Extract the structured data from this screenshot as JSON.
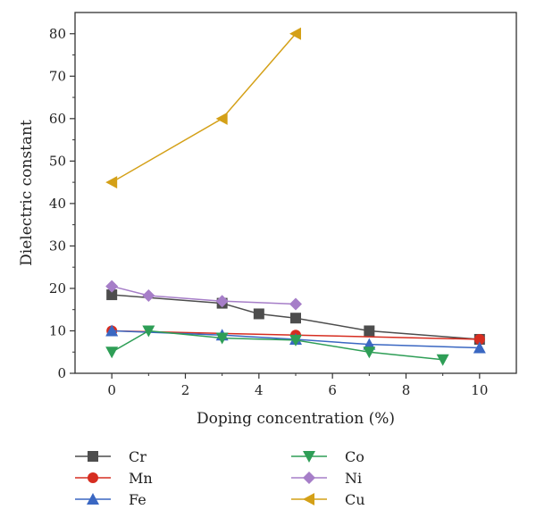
{
  "chart_data": {
    "type": "line",
    "title": "",
    "xlabel": "Doping concentration (%)",
    "ylabel": "Dielectric constant",
    "xlim": [
      -1,
      11
    ],
    "ylim": [
      0,
      85
    ],
    "xticks": [
      0,
      2,
      4,
      6,
      8,
      10
    ],
    "yticks": [
      0,
      10,
      20,
      30,
      40,
      50,
      60,
      70,
      80
    ],
    "grid": false,
    "legend_position": "bottom",
    "series": [
      {
        "name": "Cr",
        "color": "#4d4d4d",
        "marker": "square",
        "x": [
          0,
          3,
          4,
          5,
          7,
          10
        ],
        "y": [
          18.5,
          16.5,
          14,
          13,
          10,
          8
        ]
      },
      {
        "name": "Mn",
        "color": "#d62d20",
        "marker": "circle",
        "x": [
          0,
          5,
          10
        ],
        "y": [
          10,
          9,
          8
        ]
      },
      {
        "name": "Fe",
        "color": "#3a67c2",
        "marker": "triangle-up",
        "x": [
          0,
          3,
          5,
          7,
          10
        ],
        "y": [
          10,
          9,
          8,
          6.8,
          6
        ]
      },
      {
        "name": "Co",
        "color": "#2e9e56",
        "marker": "triangle-down",
        "x": [
          0,
          1,
          3,
          5,
          7,
          9
        ],
        "y": [
          5,
          10,
          8.3,
          7.8,
          5,
          3.2
        ]
      },
      {
        "name": "Ni",
        "color": "#a67ec8",
        "marker": "diamond",
        "x": [
          0,
          1,
          3,
          5
        ],
        "y": [
          20.5,
          18.3,
          17,
          16.3
        ]
      },
      {
        "name": "Cu",
        "color": "#d4a017",
        "marker": "triangle-left",
        "x": [
          0,
          3,
          5
        ],
        "y": [
          45,
          60,
          80
        ]
      }
    ]
  }
}
